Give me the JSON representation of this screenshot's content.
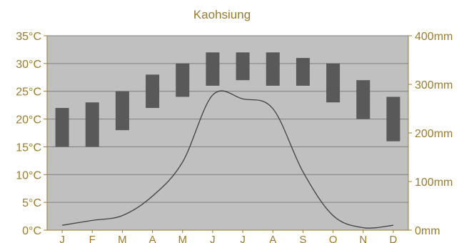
{
  "chart_data": {
    "type": "bar",
    "title": "Kaohsiung",
    "categories": [
      "J",
      "F",
      "M",
      "A",
      "M",
      "J",
      "J",
      "A",
      "S",
      "O",
      "N",
      "D"
    ],
    "series": [
      {
        "kind": "range-bar",
        "axis": "left",
        "low": [
          15,
          15,
          18,
          22,
          24,
          26,
          27,
          26,
          26,
          23,
          20,
          16
        ],
        "high": [
          22,
          23,
          25,
          28,
          30,
          32,
          32,
          32,
          31,
          30,
          27,
          24
        ],
        "color": "#595959"
      },
      {
        "kind": "line",
        "axis": "right",
        "values": [
          10,
          20,
          30,
          70,
          140,
          278,
          270,
          250,
          120,
          30,
          5,
          10
        ],
        "color": "#404040"
      }
    ],
    "y_left": {
      "ylim": [
        0,
        35
      ],
      "ticks": [
        "0°C",
        "5°C",
        "10°C",
        "15°C",
        "20°C",
        "25°C",
        "30°C",
        "35°C"
      ]
    },
    "y_right": {
      "ylim": [
        0,
        400
      ],
      "ticks": [
        "0mm",
        "100mm",
        "200mm",
        "300mm",
        "400mm"
      ]
    },
    "grid": true,
    "colors": {
      "plot_bg": "#c0c0c0",
      "grid": "#7f7f7f",
      "text": "#9b7b2a",
      "axis": "#9b7b2a"
    }
  }
}
